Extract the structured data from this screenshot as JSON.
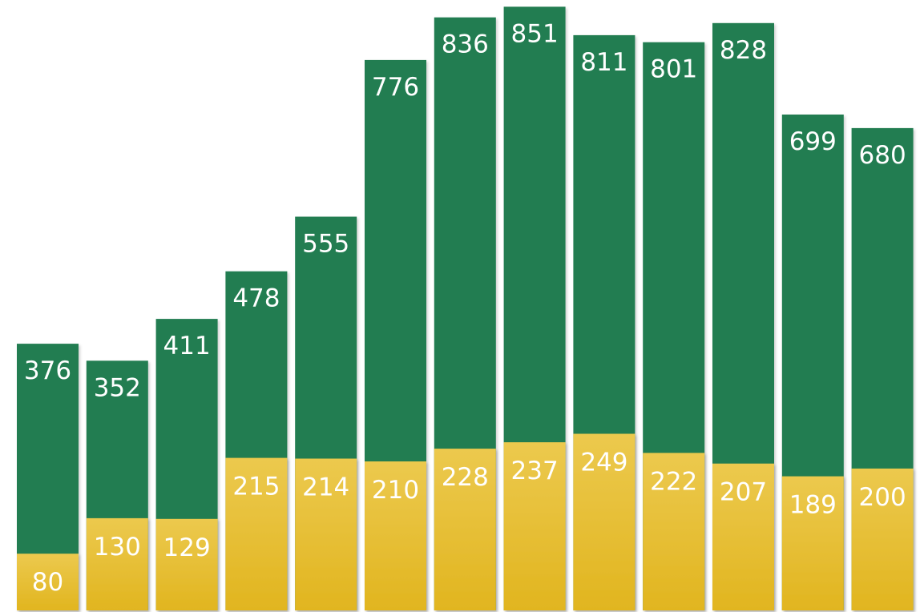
{
  "colors": {
    "green": "#217d51",
    "gold_top": "#ecc94e",
    "gold_bottom": "#e1b51f",
    "label": "#ffffff",
    "background": "#ffffff"
  },
  "chart_data": {
    "type": "bar",
    "stacked": false,
    "overlapping": true,
    "grid": false,
    "axes_visible": false,
    "legend": "none",
    "categories": [
      "",
      "",
      "",
      "",
      "",
      "",
      "",
      "",
      "",
      "",
      "",
      "",
      ""
    ],
    "series": [
      {
        "color": "#217d51",
        "values": [
          376,
          352,
          411,
          478,
          555,
          776,
          836,
          851,
          811,
          801,
          828,
          699,
          680
        ]
      },
      {
        "color": "#ecc94e",
        "values": [
          80,
          130,
          129,
          215,
          214,
          210,
          228,
          237,
          249,
          222,
          207,
          189,
          200
        ]
      }
    ],
    "ylim": [
      0,
      860
    ]
  }
}
